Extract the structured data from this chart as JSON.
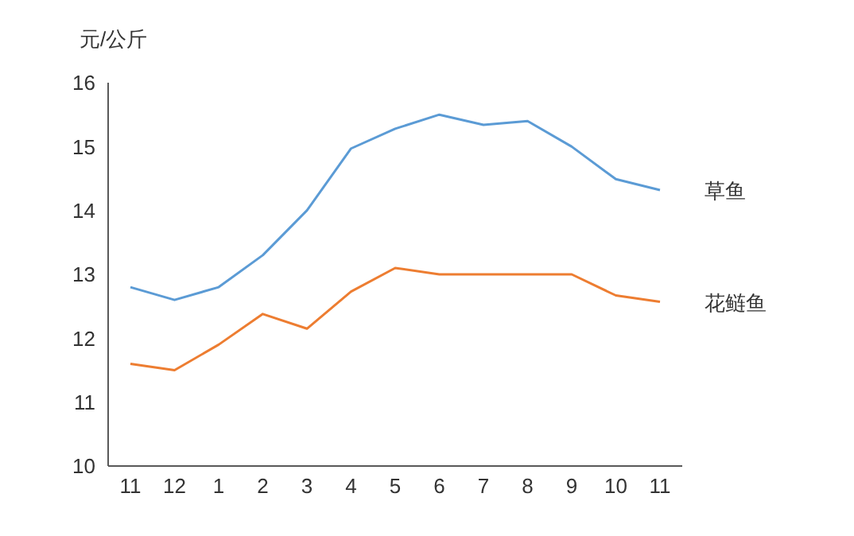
{
  "chart_data": {
    "type": "line",
    "ylabel": "元/公斤",
    "categories": [
      "11",
      "12",
      "1",
      "2",
      "3",
      "4",
      "5",
      "6",
      "7",
      "8",
      "9",
      "10",
      "11"
    ],
    "ylim": [
      10,
      16
    ],
    "yticks": [
      10,
      11,
      12,
      13,
      14,
      15,
      16
    ],
    "grid": false,
    "legend": false,
    "marker": "none",
    "line_style": "solid",
    "series": [
      {
        "name": "草鱼",
        "color": "#5b9bd5",
        "values": [
          12.8,
          12.6,
          12.8,
          13.3,
          14.0,
          14.97,
          15.28,
          15.5,
          15.34,
          15.4,
          15.0,
          14.49,
          14.32
        ]
      },
      {
        "name": "花鲢鱼",
        "color": "#ed7d31",
        "values": [
          11.6,
          11.5,
          11.9,
          12.38,
          12.15,
          12.73,
          13.1,
          13.0,
          13.0,
          13.0,
          13.0,
          12.67,
          12.57
        ]
      }
    ]
  }
}
